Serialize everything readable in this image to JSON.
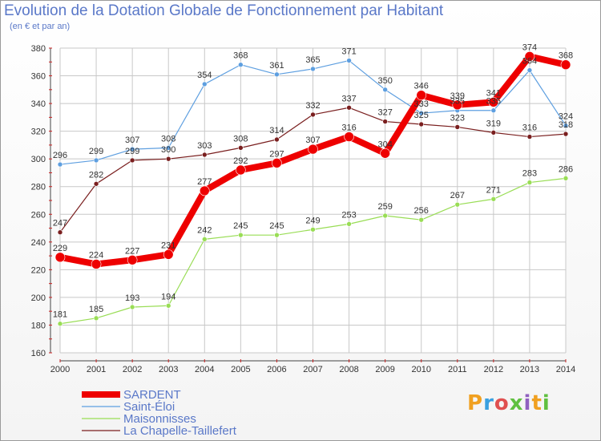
{
  "title": "Evolution de la Dotation Globale de Fonctionnement par Habitant",
  "subtitle": "(en € et par an)",
  "logo": "Proxiti",
  "chart_data": {
    "type": "line",
    "x": [
      "2000",
      "2001",
      "2002",
      "2003",
      "2004",
      "2005",
      "2006",
      "2007",
      "2008",
      "2009",
      "2010",
      "2011",
      "2012",
      "2013",
      "2014"
    ],
    "ylim": [
      160,
      380
    ],
    "yticks": [
      160,
      180,
      200,
      220,
      240,
      260,
      280,
      300,
      320,
      340,
      360,
      380
    ],
    "grid": true,
    "legend_position": "bottom-left",
    "series": [
      {
        "name": "La Chapelle-Taillefert",
        "color": "#7a1f1f",
        "values": [
          247,
          282,
          299,
          300,
          303,
          308,
          314,
          332,
          337,
          327,
          325,
          323,
          319,
          316,
          318
        ],
        "labels": [
          "247",
          "282",
          "299",
          "300",
          "303",
          "308",
          "314",
          "332",
          "337",
          "327",
          "325",
          "323",
          "319",
          "316",
          "318"
        ]
      },
      {
        "name": "Maisonnisses",
        "color": "#99dd55",
        "values": [
          181,
          185,
          193,
          194,
          242,
          245,
          245,
          249,
          253,
          259,
          256,
          267,
          271,
          283,
          286
        ],
        "labels": [
          "181",
          "185",
          "193",
          "194",
          "242",
          "245",
          "245",
          "249",
          "253",
          "259",
          "256",
          "267",
          "271",
          "283",
          "286"
        ]
      },
      {
        "name": "Saint-Éloi",
        "color": "#5e9fe0",
        "values": [
          296,
          299,
          307,
          308,
          354,
          368,
          361,
          365,
          371,
          350,
          333,
          335,
          335,
          364,
          324
        ],
        "labels": [
          "296",
          "299",
          "307",
          "308",
          "354",
          "368",
          "361",
          "365",
          "371",
          "350",
          "333",
          "335",
          "335",
          "364",
          "324"
        ]
      },
      {
        "name": "SARDENT",
        "color": "#ee0000",
        "values": [
          229,
          224,
          227,
          231,
          277,
          292,
          297,
          307,
          316,
          304,
          346,
          339,
          341,
          374,
          368
        ],
        "labels": [
          "229",
          "224",
          "227",
          "231",
          "277",
          "292",
          "297",
          "307",
          "316",
          "304",
          "346",
          "339",
          "341",
          "374",
          "368"
        ]
      }
    ]
  }
}
